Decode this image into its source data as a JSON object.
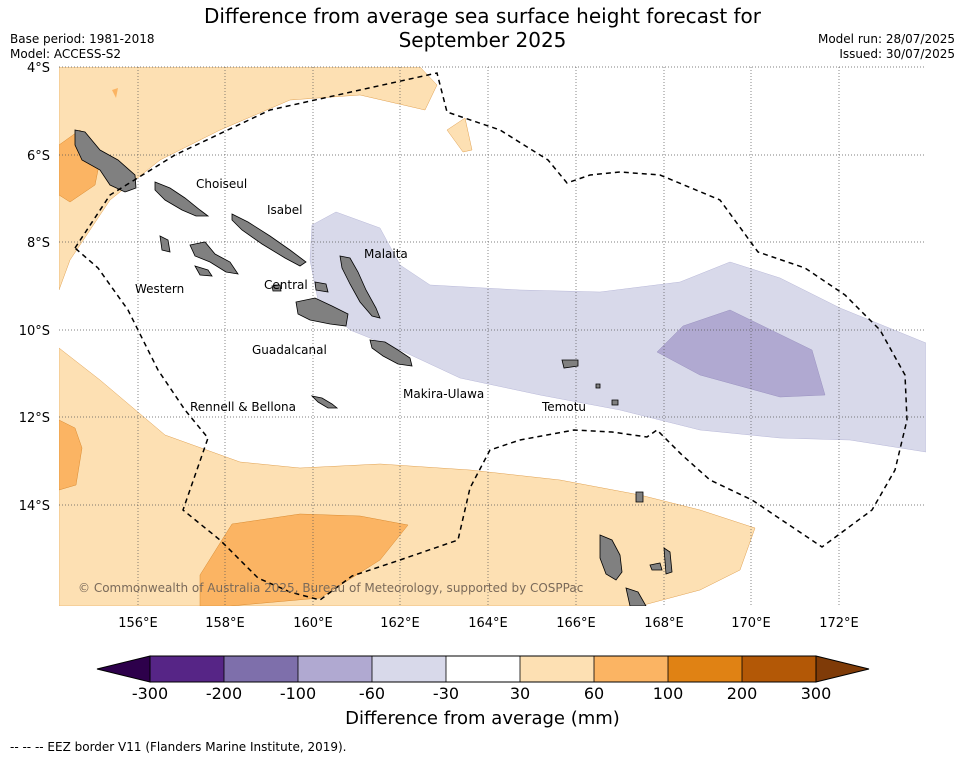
{
  "header": {
    "title_line1": "Difference from average sea surface height forecast for",
    "title_line2": "September 2025",
    "base_period": "Base period: 1981-2018",
    "model": "Model: ACCESS-S2",
    "model_run": "Model run: 28/07/2025",
    "issued": "Issued: 30/07/2025"
  },
  "map": {
    "lat_labels": [
      "4°S",
      "6°S",
      "8°S",
      "10°S",
      "12°S",
      "14°S"
    ],
    "lon_labels": [
      "156°E",
      "158°E",
      "160°E",
      "162°E",
      "164°E",
      "166°E",
      "168°E",
      "170°E",
      "172°E"
    ],
    "provinces": [
      "Choiseul",
      "Isabel",
      "Malaita",
      "Western",
      "Central",
      "Guadalcanal",
      "Makira-Ulawa",
      "Rennell & Bellona",
      "Temotu"
    ],
    "copyright": "© Commonwealth of Australia 2025, Bureau of Meteorology, supported by COSPPac",
    "colors": {
      "ocean": "#ffffff",
      "land": "#808080",
      "pos_30_60": "#fde0b3",
      "pos_60_100": "#fbb463",
      "neg_30_60": "#d8d9ea",
      "neg_60_100": "#b0a9d1"
    }
  },
  "colorbar": {
    "ticks": [
      "-300",
      "-200",
      "-100",
      "-60",
      "-30",
      "30",
      "60",
      "100",
      "200",
      "300"
    ],
    "colors": [
      "#562586",
      "#7e6fab",
      "#b0a9d1",
      "#d8d9ea",
      "#ffffff",
      "#fde0b3",
      "#fbb463",
      "#e08214",
      "#b35806"
    ],
    "under_color": "#2d004b",
    "over_color": "#7f3b08",
    "label": "Difference from average (mm)"
  },
  "legend_note": "--  --  -- EEZ border V11 (Flanders Marine Institute, 2019)."
}
